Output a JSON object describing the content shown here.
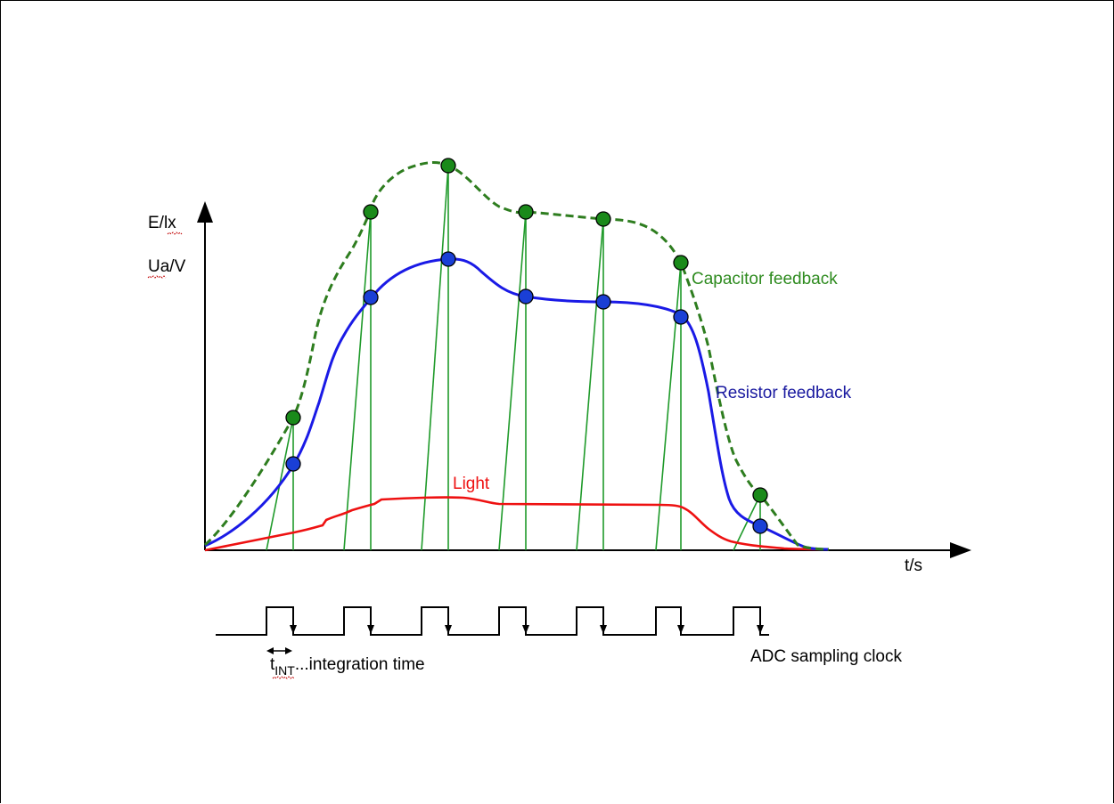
{
  "labels": {
    "y_axis_top": "E/lx",
    "y_axis_bottom": "Ua/V",
    "x_axis": "t/s",
    "capacitor": "Capacitor feedback",
    "resistor": "Resistor feedback",
    "light": "Light",
    "tint_main": "t",
    "tint_sub": "INT",
    "tint_rest": "...integration time",
    "adc_clock": "ADC sampling clock"
  },
  "colors": {
    "axis": "#000000",
    "capacitor": "#2e7d1f",
    "resistor": "#1a1ae6",
    "light": "#ee1111",
    "sample_green": "#1a8a1a",
    "sample_blue": "#1a3fd6",
    "sawtooth": "#1f9a2a",
    "capacitor_label": "#2e8b1f",
    "resistor_label": "#1a1aa0",
    "light_label": "#ee1111"
  },
  "markers": {
    "green": [
      "sample-marker-green",
      "sample-marker-green",
      "sample-marker-green",
      "sample-marker-green",
      "sample-marker-green",
      "sample-marker-green",
      "sample-marker-green",
      "sample-marker-green"
    ],
    "blue": [
      "sample-marker-blue",
      "sample-marker-blue",
      "sample-marker-blue",
      "sample-marker-blue",
      "sample-marker-blue",
      "sample-marker-blue",
      "sample-marker-blue",
      "sample-marker-blue"
    ]
  }
}
